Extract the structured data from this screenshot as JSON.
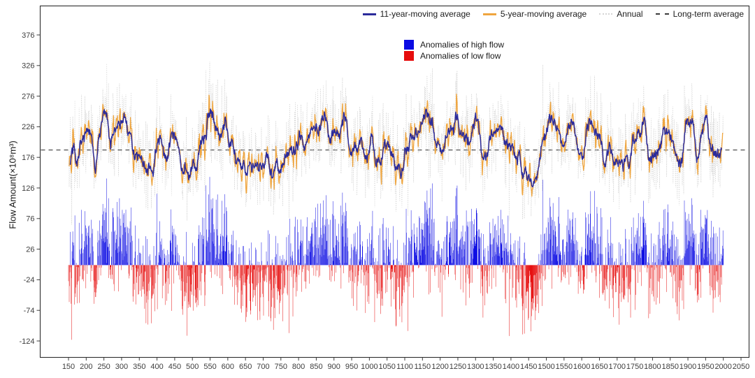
{
  "chart_data": {
    "type": "composite",
    "components": [
      "line",
      "bar"
    ],
    "title": "",
    "xlabel": "",
    "ylabel": "Flow Amount(×10⁸m³)",
    "x_domain": [
      150,
      2050
    ],
    "data_start_year": 150,
    "data_end_year": 2000,
    "x_ticks": [
      150,
      200,
      250,
      300,
      350,
      400,
      450,
      500,
      550,
      600,
      650,
      700,
      750,
      800,
      850,
      900,
      950,
      1000,
      1050,
      1100,
      1150,
      1200,
      1250,
      1300,
      1350,
      1400,
      1450,
      1500,
      1550,
      1600,
      1650,
      1700,
      1750,
      1800,
      1850,
      1900,
      1950,
      2000,
      2050
    ],
    "y_ticks": [
      -124,
      -74,
      -24,
      26,
      76,
      126,
      176,
      226,
      276,
      326,
      376
    ],
    "y_domain": [
      -150,
      395
    ],
    "grid": false,
    "long_term_average": 188,
    "anomaly_baseline": 0,
    "legend_lines": [
      {
        "label": "11-year-moving average",
        "color": "#2B2B9B",
        "style": "solid"
      },
      {
        "label": "5-year-moving average",
        "color": "#EFA53E",
        "style": "solid"
      },
      {
        "label": "Annual",
        "color": "#D4D4D4",
        "style": "dotted"
      },
      {
        "label": "Long-term average",
        "color": "#3B3B3B",
        "style": "dashed"
      }
    ],
    "legend_anomalies": [
      {
        "label": "Anomalies of high flow",
        "color": "#0B0BE3"
      },
      {
        "label": "Anomalies of low flow",
        "color": "#E60D0D"
      }
    ],
    "colors": {
      "annual_line": "#C8C8C8",
      "ma5_line": "#EFA53E",
      "ma11_line": "#2B2B9B",
      "long_term_average_line": "#3B3B3B",
      "high_flow_bar": "#0B0BE3",
      "low_flow_bar": "#E60D0D",
      "panel_border": "#2E2E2E",
      "tick_color": "#3D3D3D"
    },
    "ma11_anchors": {
      "start_year": 150,
      "step_years": 25,
      "values": [
        198,
        172,
        232,
        170,
        248,
        205,
        238,
        200,
        165,
        158,
        205,
        175,
        225,
        170,
        155,
        190,
        232,
        228,
        215,
        170,
        158,
        152,
        168,
        152,
        172,
        188,
        178,
        205,
        218,
        232,
        188,
        235,
        178,
        205,
        188,
        172,
        198,
        158,
        175,
        205,
        228,
        238,
        188,
        218,
        235,
        192,
        242,
        182,
        205,
        225,
        188,
        158,
        132,
        148,
        225,
        240,
        205,
        232,
        182,
        228,
        208,
        168,
        158,
        178,
        205,
        232,
        168,
        205,
        222,
        172,
        238,
        178,
        240,
        172,
        205
      ]
    },
    "generation": {
      "seed": 42,
      "annual_noise_std": 38,
      "annual_min": 50,
      "annual_max": 332
    }
  }
}
